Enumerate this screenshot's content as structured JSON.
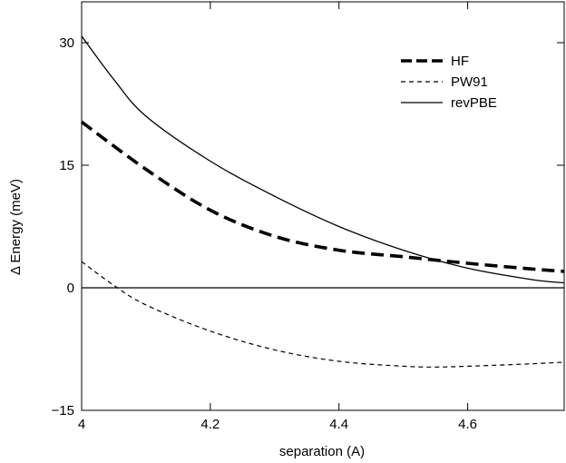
{
  "chart_data": {
    "type": "line",
    "title": "",
    "xlabel": "separation (A)",
    "ylabel": "Δ Energy (meV)",
    "xlim": [
      4.0,
      4.75
    ],
    "ylim": [
      -15,
      35
    ],
    "xticks": [
      4,
      4.2,
      4.4,
      4.6
    ],
    "xtick_labels": [
      "4",
      "4.2",
      "4.4",
      "4.6"
    ],
    "yticks": [
      -15,
      0,
      15,
      30
    ],
    "ytick_labels": [
      "−15",
      "0",
      "15",
      "30"
    ],
    "grid": false,
    "legend_position": "top-right",
    "reference_line": 0,
    "series": [
      {
        "name": "HF",
        "style": "thick-dashed",
        "color": "#000000",
        "x": [
          4.0,
          4.1,
          4.2,
          4.3,
          4.4,
          4.5,
          4.6,
          4.7,
          4.75
        ],
        "y": [
          20.3,
          14.5,
          9.5,
          6.3,
          4.6,
          3.8,
          3.0,
          2.3,
          2.0
        ]
      },
      {
        "name": "PW91",
        "style": "thin-dashed",
        "color": "#000000",
        "x": [
          4.0,
          4.05,
          4.1,
          4.2,
          4.3,
          4.4,
          4.5,
          4.55,
          4.6,
          4.7,
          4.75
        ],
        "y": [
          3.2,
          0.3,
          -2.1,
          -5.3,
          -7.6,
          -9.0,
          -9.6,
          -9.7,
          -9.6,
          -9.3,
          -9.1
        ]
      },
      {
        "name": "revPBE",
        "style": "solid",
        "color": "#000000",
        "x": [
          4.0,
          4.05,
          4.1,
          4.2,
          4.3,
          4.4,
          4.5,
          4.6,
          4.7,
          4.75
        ],
        "y": [
          30.8,
          25.5,
          21.0,
          15.5,
          11.2,
          7.5,
          4.6,
          2.4,
          1.0,
          0.6
        ]
      }
    ]
  }
}
